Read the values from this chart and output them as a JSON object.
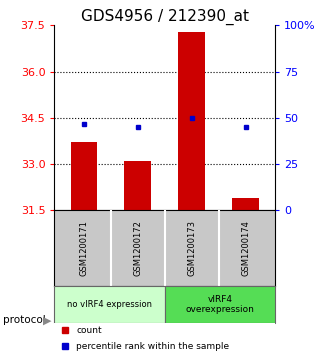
{
  "title": "GDS4956 / 212390_at",
  "samples": [
    "GSM1200171",
    "GSM1200172",
    "GSM1200173",
    "GSM1200174"
  ],
  "red_values": [
    33.72,
    33.1,
    37.3,
    31.9
  ],
  "blue_values": [
    34.3,
    34.2,
    34.5,
    34.2
  ],
  "y_min": 31.5,
  "y_max": 37.5,
  "y_ticks_left": [
    31.5,
    33.0,
    34.5,
    36.0,
    37.5
  ],
  "y_ticks_right_vals": [
    0,
    25,
    50,
    75,
    100
  ],
  "y_ticks_right_labels": [
    "0",
    "25",
    "50",
    "75",
    "100%"
  ],
  "dotted_lines": [
    33.0,
    34.5,
    36.0
  ],
  "bar_color": "#cc0000",
  "dot_color": "#0000cc",
  "group1_label": "no vIRF4 expression",
  "group2_label": "vIRF4\noverexpression",
  "group1_color": "#ccffcc",
  "group2_color": "#55dd55",
  "protocol_label": "protocol",
  "arrow_color": "#888888",
  "legend_count": "count",
  "legend_pct": "percentile rank within the sample",
  "sample_bg_color": "#c8c8c8",
  "plot_bg": "#ffffff",
  "title_fontsize": 11,
  "tick_fontsize": 8,
  "bar_width": 0.5
}
